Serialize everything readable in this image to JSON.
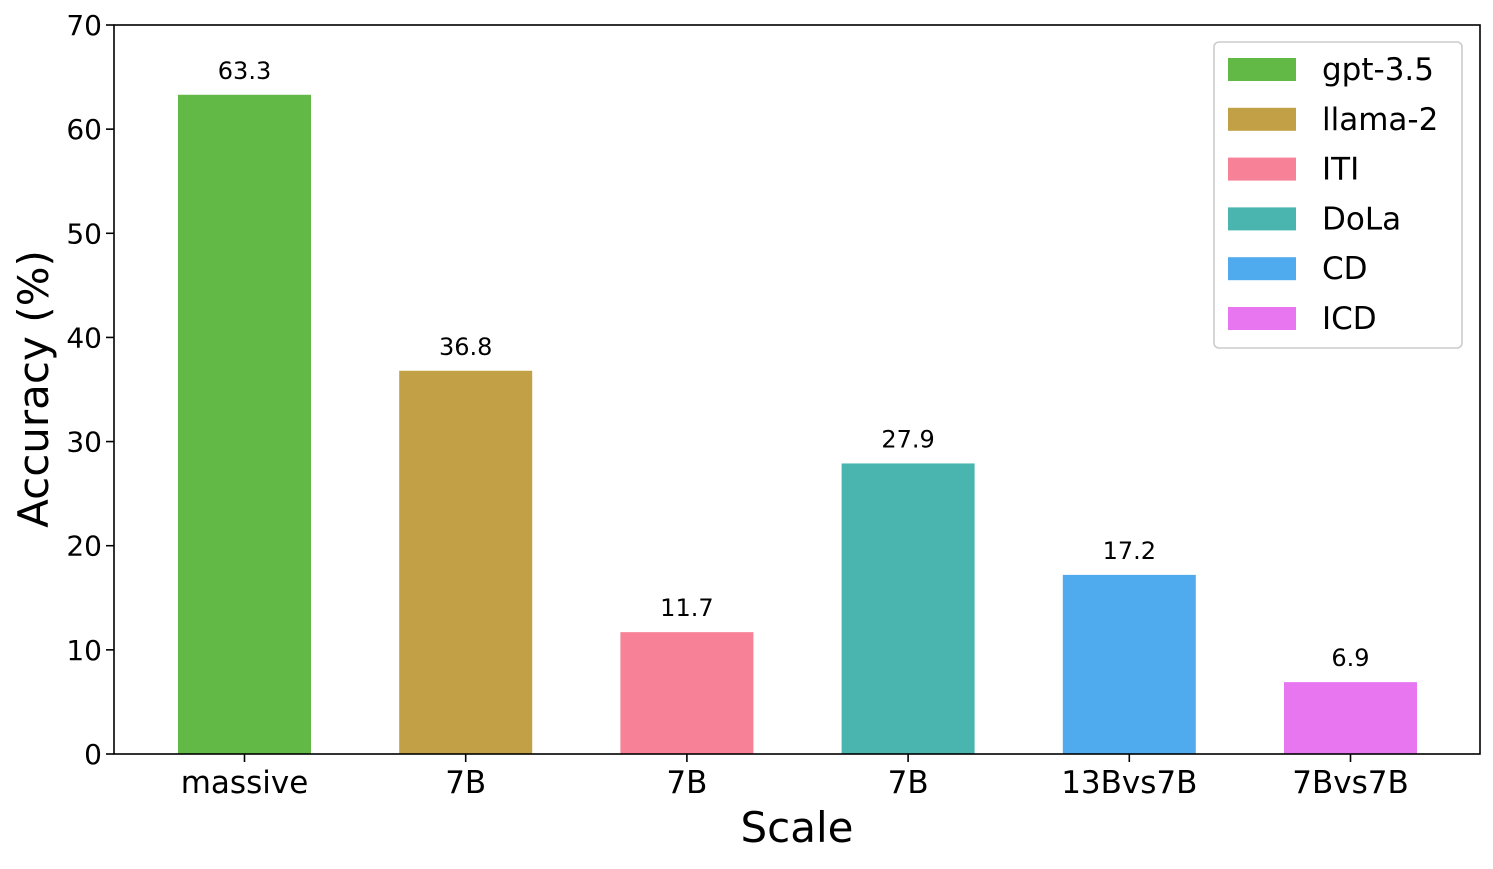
{
  "chart_data": {
    "type": "bar",
    "xlabel": "Scale",
    "ylabel": "Accuracy (%)",
    "ylim": [
      0,
      70
    ],
    "yticks": [
      0,
      10,
      20,
      30,
      40,
      50,
      60,
      70
    ],
    "categories": [
      "massive",
      "7B",
      "7B",
      "7B",
      "13Bvs7B",
      "7Bvs7B"
    ],
    "values": [
      63.3,
      36.8,
      11.7,
      27.9,
      17.2,
      6.9
    ],
    "value_labels": [
      "63.3",
      "36.8",
      "11.7",
      "27.9",
      "17.2",
      "6.9"
    ],
    "series": [
      {
        "name": "gpt-3.5",
        "color": "#62b946"
      },
      {
        "name": "llama-2",
        "color": "#c2a046"
      },
      {
        "name": "ITI",
        "color": "#f78196"
      },
      {
        "name": "DoLa",
        "color": "#4ab5ae"
      },
      {
        "name": "CD",
        "color": "#4faaee"
      },
      {
        "name": "ICD",
        "color": "#e776f0"
      }
    ],
    "grid": false,
    "legend_position": "top-right"
  }
}
